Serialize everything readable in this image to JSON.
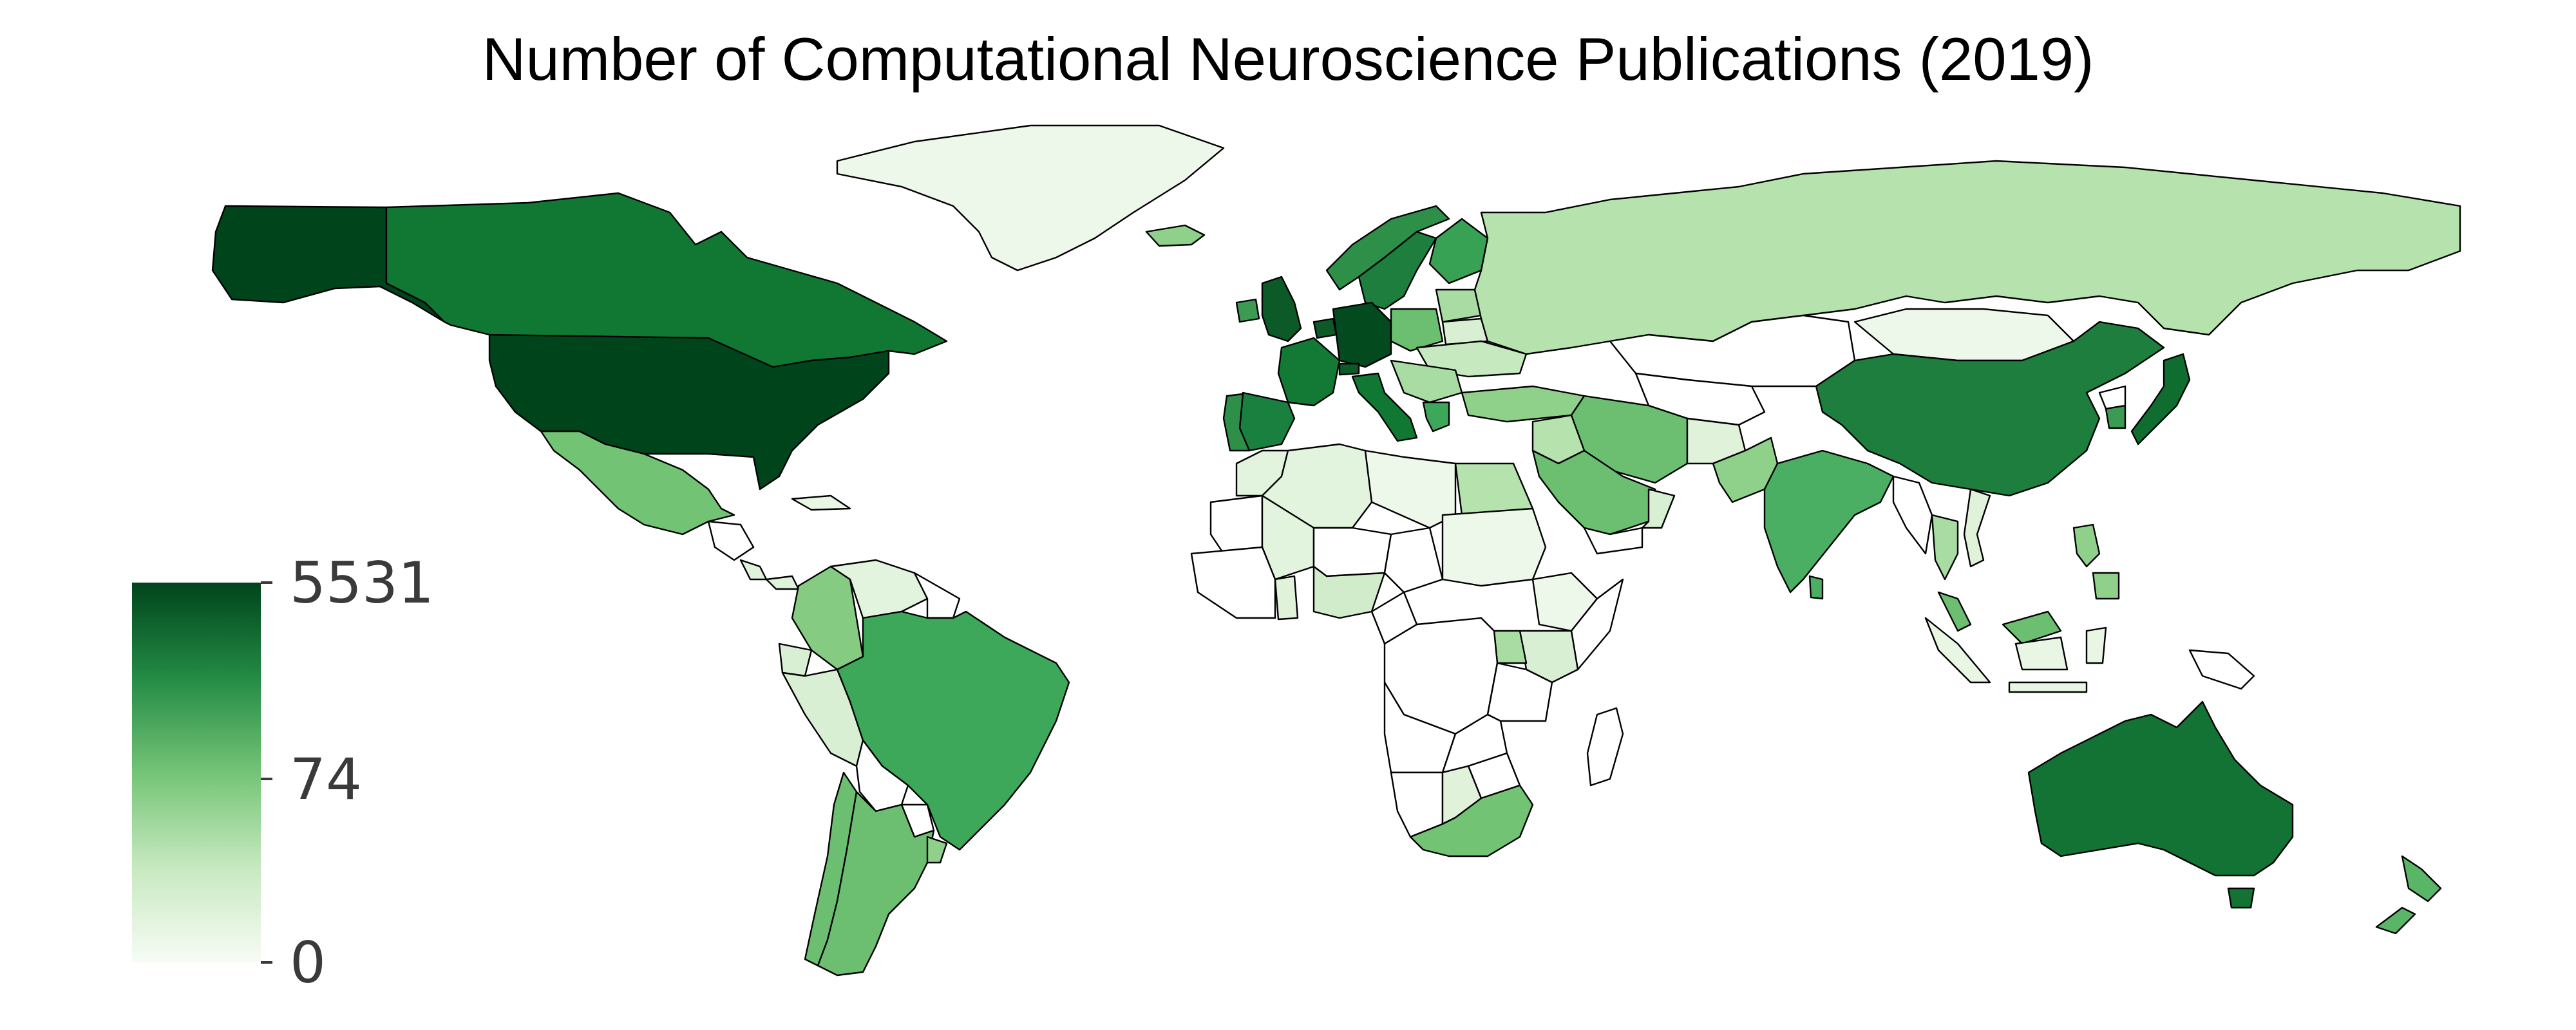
{
  "title": "Number of Computational Neuroscience Publications (2019)",
  "colorbar": {
    "ticks": [
      {
        "label": "5531",
        "value": 5531
      },
      {
        "label": "74",
        "value": 74
      },
      {
        "label": "0",
        "value": 0
      }
    ],
    "colors": [
      "#f7fcf5",
      "#c7e9c0",
      "#74c476",
      "#238b45",
      "#00441b"
    ]
  },
  "no_data_color": "#ffffff",
  "countries": [
    {
      "name": "United States",
      "color": "#00441b"
    },
    {
      "name": "Alaska",
      "color": "#00441b"
    },
    {
      "name": "Canada",
      "color": "#117834"
    },
    {
      "name": "Greenland",
      "color": "#eef8ea"
    },
    {
      "name": "Iceland",
      "color": "#8fd18b"
    },
    {
      "name": "Mexico",
      "color": "#72c374"
    },
    {
      "name": "Cuba",
      "color": "#e9f6e4"
    },
    {
      "name": "Guatemala",
      "color": "#ffffff"
    },
    {
      "name": "Costa Rica",
      "color": "#e0f2da"
    },
    {
      "name": "Panama",
      "color": "#e0f2da"
    },
    {
      "name": "Colombia",
      "color": "#85cc82"
    },
    {
      "name": "Venezuela",
      "color": "#e3f4de"
    },
    {
      "name": "Guyana",
      "color": "#ffffff"
    },
    {
      "name": "Ecuador",
      "color": "#d9efd3"
    },
    {
      "name": "Peru",
      "color": "#d9efd3"
    },
    {
      "name": "Brazil",
      "color": "#3da85a"
    },
    {
      "name": "Bolivia",
      "color": "#ffffff"
    },
    {
      "name": "Paraguay",
      "color": "#ffffff"
    },
    {
      "name": "Chile",
      "color": "#6cbf70"
    },
    {
      "name": "Argentina",
      "color": "#6cbf70"
    },
    {
      "name": "Uruguay",
      "color": "#8fd18b"
    },
    {
      "name": "United Kingdom",
      "color": "#0b5a28"
    },
    {
      "name": "Ireland",
      "color": "#3c9a52"
    },
    {
      "name": "Norway",
      "color": "#2e8f49"
    },
    {
      "name": "Sweden",
      "color": "#1e7e3e"
    },
    {
      "name": "Finland",
      "color": "#37a154"
    },
    {
      "name": "Germany",
      "color": "#034a1e"
    },
    {
      "name": "France",
      "color": "#137a36"
    },
    {
      "name": "Spain",
      "color": "#1a8040"
    },
    {
      "name": "Portugal",
      "color": "#2e8f49"
    },
    {
      "name": "Italy",
      "color": "#117834"
    },
    {
      "name": "Switzerland",
      "color": "#0b5a28"
    },
    {
      "name": "Netherlands",
      "color": "#0b5a28"
    },
    {
      "name": "Poland",
      "color": "#6cbf70"
    },
    {
      "name": "Ukraine",
      "color": "#c7e9c0"
    },
    {
      "name": "Belarus",
      "color": "#d9efd3"
    },
    {
      "name": "Baltic States",
      "color": "#a9dca3"
    },
    {
      "name": "Greece",
      "color": "#3da85a"
    },
    {
      "name": "Balkans",
      "color": "#a9dca3"
    },
    {
      "name": "Turkey",
      "color": "#8fd18b"
    },
    {
      "name": "Russia",
      "color": "#b6e2ae"
    },
    {
      "name": "Kazakhstan",
      "color": "#ffffff"
    },
    {
      "name": "Mongolia",
      "color": "#eef8ea"
    },
    {
      "name": "China",
      "color": "#1e7e3e"
    },
    {
      "name": "Japan",
      "color": "#0f6d30"
    },
    {
      "name": "South Korea",
      "color": "#3c9a52"
    },
    {
      "name": "North Korea",
      "color": "#ffffff"
    },
    {
      "name": "Central Asia",
      "color": "#ffffff"
    },
    {
      "name": "Afghanistan",
      "color": "#e0f2da"
    },
    {
      "name": "Pakistan",
      "color": "#8fd18b"
    },
    {
      "name": "India",
      "color": "#4aaf62"
    },
    {
      "name": "Sri Lanka",
      "color": "#4aaf62"
    },
    {
      "name": "Iran",
      "color": "#6cbf70"
    },
    {
      "name": "Iraq",
      "color": "#b6e2ae"
    },
    {
      "name": "Saudi Arabia",
      "color": "#6cbf70"
    },
    {
      "name": "Yemen",
      "color": "#ffffff"
    },
    {
      "name": "Oman",
      "color": "#d9efd3"
    },
    {
      "name": "Myanmar",
      "color": "#ffffff"
    },
    {
      "name": "Thailand",
      "color": "#a9dca3"
    },
    {
      "name": "Vietnam",
      "color": "#e0f2da"
    },
    {
      "name": "Malaysia",
      "color": "#6cbf70"
    },
    {
      "name": "Indonesia",
      "color": "#e9f6e4"
    },
    {
      "name": "Philippines",
      "color": "#8fd18b"
    },
    {
      "name": "Papua New Guinea",
      "color": "#ffffff"
    },
    {
      "name": "Australia",
      "color": "#127334"
    },
    {
      "name": "Tasmania",
      "color": "#127334"
    },
    {
      "name": "New Zealand",
      "color": "#5ab667"
    },
    {
      "name": "Morocco",
      "color": "#e3f4de"
    },
    {
      "name": "Algeria",
      "color": "#e3f4de"
    },
    {
      "name": "Libya",
      "color": "#eef8ea"
    },
    {
      "name": "Egypt",
      "color": "#b6e2ae"
    },
    {
      "name": "Mali",
      "color": "#e3f4de"
    },
    {
      "name": "Niger",
      "color": "#ffffff"
    },
    {
      "name": "Chad",
      "color": "#ffffff"
    },
    {
      "name": "Sudan",
      "color": "#eef8ea"
    },
    {
      "name": "Mauritania",
      "color": "#ffffff"
    },
    {
      "name": "West Africa",
      "color": "#ffffff"
    },
    {
      "name": "Ghana",
      "color": "#e0f2da"
    },
    {
      "name": "Nigeria",
      "color": "#d1ecca"
    },
    {
      "name": "Cameroon",
      "color": "#ffffff"
    },
    {
      "name": "Ethiopia",
      "color": "#eef8ea"
    },
    {
      "name": "Somalia",
      "color": "#ffffff"
    },
    {
      "name": "Kenya",
      "color": "#d9efd3"
    },
    {
      "name": "Uganda",
      "color": "#a9dca3"
    },
    {
      "name": "Tanzania",
      "color": "#ffffff"
    },
    {
      "name": "DR Congo",
      "color": "#ffffff"
    },
    {
      "name": "Angola",
      "color": "#ffffff"
    },
    {
      "name": "Zambia",
      "color": "#ffffff"
    },
    {
      "name": "Zimbabwe",
      "color": "#ffffff"
    },
    {
      "name": "Botswana",
      "color": "#e0f2da"
    },
    {
      "name": "Namibia",
      "color": "#ffffff"
    },
    {
      "name": "South Africa",
      "color": "#72c374"
    },
    {
      "name": "Madagascar",
      "color": "#ffffff"
    }
  ]
}
